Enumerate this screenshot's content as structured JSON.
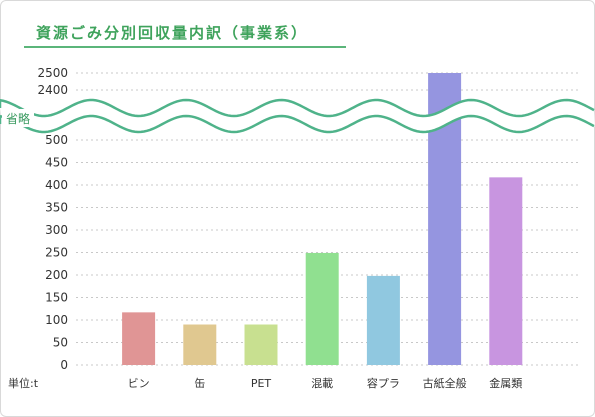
{
  "title": "資源ごみ分別回収量内訳（事業系）",
  "colors": {
    "title": "#3fa35c",
    "break_line": "#4fb38a",
    "grid": "#c8c8c8"
  },
  "chart_data": {
    "type": "bar",
    "title": "資源ごみ分別回収量内訳（事業系）",
    "unit_label": "単位:t",
    "axis_break_label": "省略",
    "categories": [
      "ビン",
      "缶",
      "PET",
      "混載",
      "容プラ",
      "古紙全般",
      "金属類"
    ],
    "values": [
      117,
      90,
      90,
      249,
      198,
      2500,
      417
    ],
    "colors": [
      "#e09595",
      "#e0c890",
      "#c8e090",
      "#90e090",
      "#90c8e0",
      "#9595e0",
      "#c895e0"
    ],
    "yticks_lower": [
      0,
      50,
      100,
      150,
      200,
      250,
      300,
      350,
      400,
      450,
      500
    ],
    "yticks_upper": [
      2400,
      2500
    ],
    "ylim_lower": [
      0,
      500
    ],
    "ylim_upper": [
      2400,
      2500
    ],
    "grid": true,
    "axis_break": true
  }
}
